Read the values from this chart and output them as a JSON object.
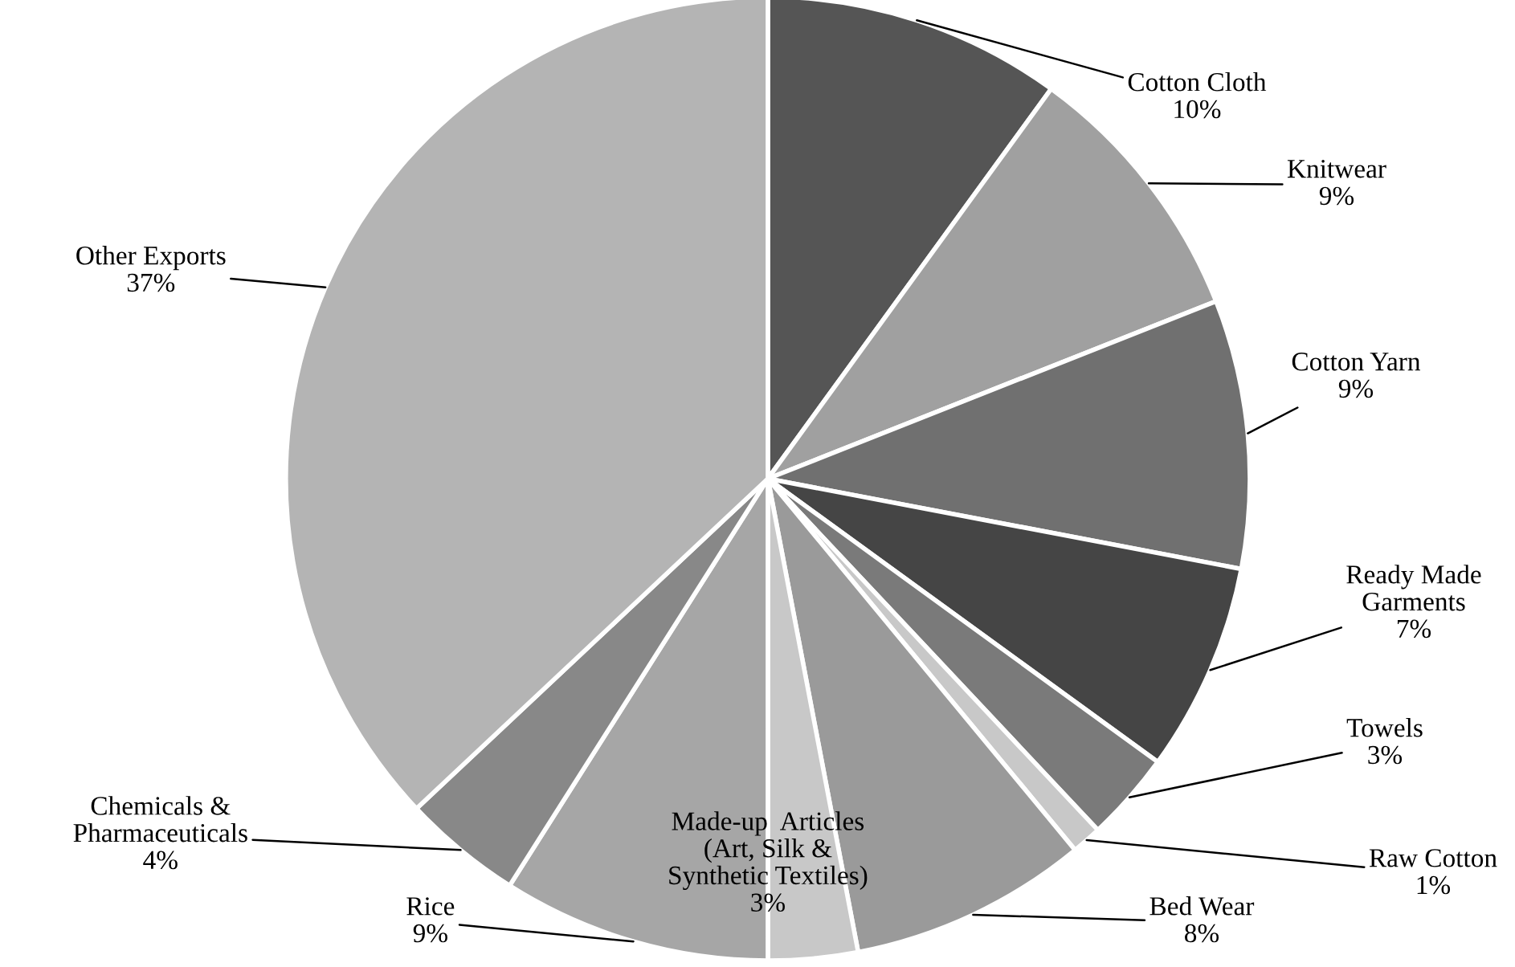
{
  "chart_data": {
    "type": "pie",
    "categories": [
      "Cotton Cloth",
      "Knitwear",
      "Cotton Yarn",
      "Ready Made\nGarments",
      "Towels",
      "Raw Cotton",
      "Bed Wear",
      "Made-up  Articles\n(Art, Silk &\nSynthetic Textiles)",
      "Rice",
      "Chemicals &\nPharmaceuticals",
      "Other Exports"
    ],
    "values": [
      10,
      9,
      9,
      7,
      3,
      1,
      8,
      3,
      9,
      4,
      37
    ],
    "colors": [
      "#555555",
      "#a0a0a0",
      "#707070",
      "#454545",
      "#7a7a7a",
      "#c8c8c8",
      "#9a9a9a",
      "#c8c8c8",
      "#a6a6a6",
      "#888888",
      "#b4b4b4"
    ],
    "value_labels": [
      "10%",
      "9%",
      "9%",
      "7%",
      "3%",
      "1%",
      "8%",
      "3%",
      "9%",
      "4%",
      "37%"
    ]
  }
}
